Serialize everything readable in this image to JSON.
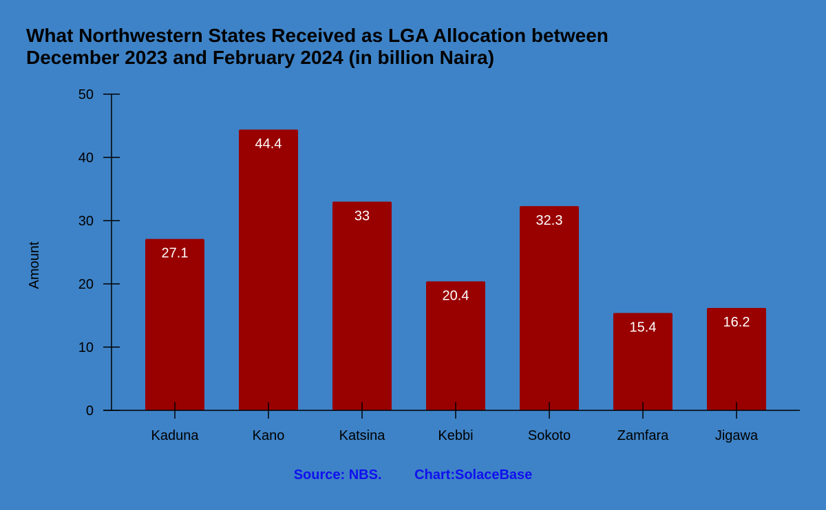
{
  "chart_data": {
    "type": "bar",
    "title_lines": [
      "What Northwestern States Received as LGA Allocation between",
      "December 2023 and February 2024 (in billion Naira)"
    ],
    "xlabel": "",
    "ylabel": "Amount",
    "ylim": [
      0,
      50
    ],
    "yticks": [
      0,
      10,
      20,
      30,
      40,
      50
    ],
    "categories": [
      "Kaduna",
      "Kano",
      "Katsina",
      "Kebbi",
      "Sokoto",
      "Zamfara",
      "Jigawa"
    ],
    "values": [
      27.1,
      44.4,
      33,
      20.4,
      32.3,
      15.4,
      16.2
    ],
    "data_labels": [
      "27.1",
      "44.4",
      "33",
      "20.4",
      "32.3",
      "15.4",
      "16.2"
    ],
    "bar_color": "#990000",
    "background_color": "#3e83c7",
    "grid": false,
    "legend": "none"
  },
  "footer": {
    "source": "Source: NBS.",
    "credit": "Chart:SolaceBase",
    "color": "#1010ee"
  }
}
